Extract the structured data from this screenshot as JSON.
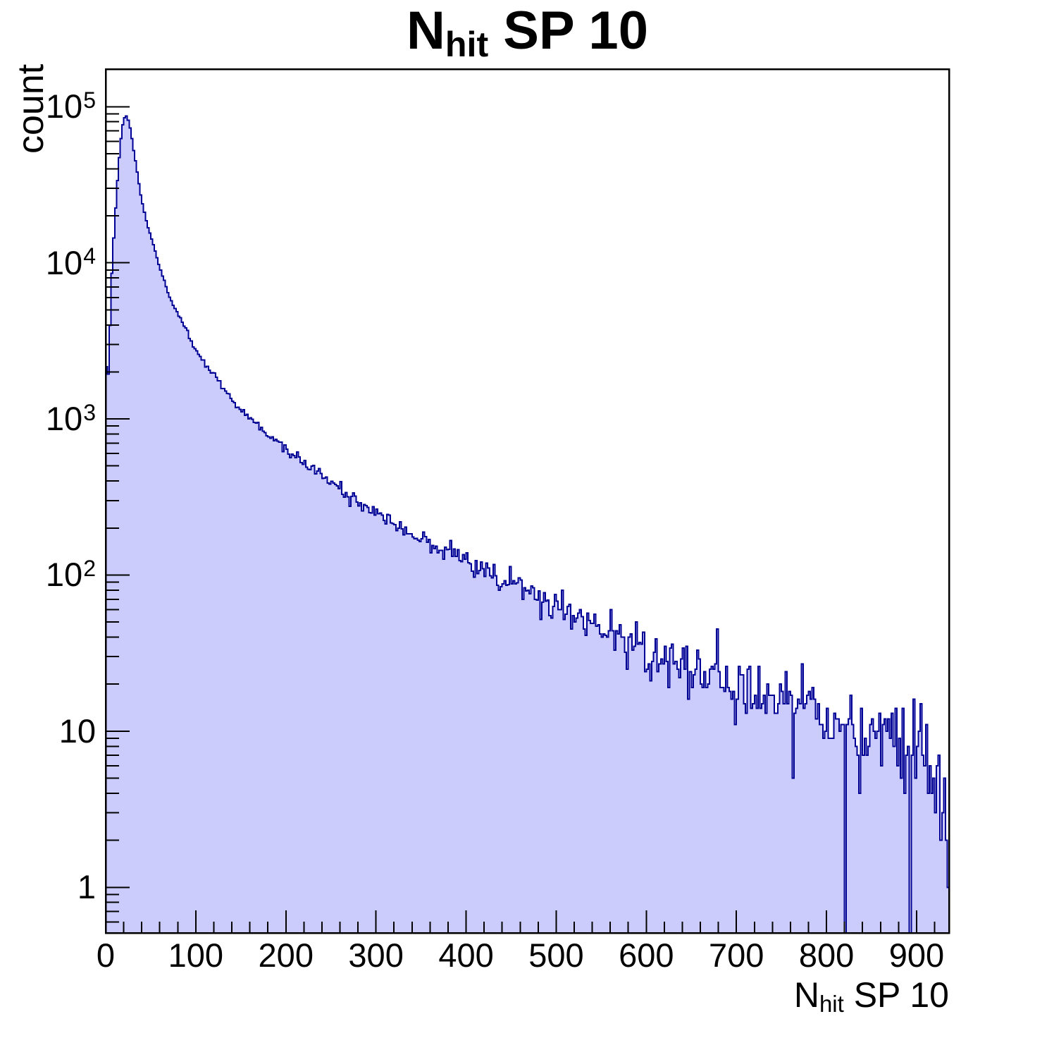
{
  "title": {
    "main": "N",
    "sub": "hit",
    "rest": " SP 10"
  },
  "y_axis": {
    "label": "count",
    "scale": "log",
    "range": [
      0.51,
      174000
    ],
    "ticks": [
      {
        "v": 100000,
        "base": "10",
        "exp": "5"
      },
      {
        "v": 10000,
        "base": "10",
        "exp": "4"
      },
      {
        "v": 1000,
        "base": "10",
        "exp": "3"
      },
      {
        "v": 100,
        "base": "10",
        "exp": "2"
      },
      {
        "v": 10,
        "base": "10",
        "exp": ""
      },
      {
        "v": 1,
        "base": "1",
        "exp": ""
      }
    ]
  },
  "x_axis": {
    "label": {
      "main": "N",
      "sub": "hit",
      "rest": " SP 10"
    },
    "range": [
      0,
      936
    ],
    "minor_step": 20,
    "ticks": [
      {
        "v": 0,
        "label": "0"
      },
      {
        "v": 100,
        "label": "100"
      },
      {
        "v": 200,
        "label": "200"
      },
      {
        "v": 300,
        "label": "300"
      },
      {
        "v": 400,
        "label": "400"
      },
      {
        "v": 500,
        "label": "500"
      },
      {
        "v": 600,
        "label": "600"
      },
      {
        "v": 700,
        "label": "700"
      },
      {
        "v": 800,
        "label": "800"
      },
      {
        "v": 900,
        "label": "900"
      }
    ]
  },
  "colors": {
    "fill": "#ccccfc",
    "line": "#000095",
    "frame": "#000000",
    "text": "#000000",
    "background": "#ffffff"
  },
  "chart_data": {
    "type": "histogram",
    "style": "filled step histogram, log-scale y axis (ROOT style)",
    "title": "N_hit SP 10",
    "xlabel": "N_hit SP 10",
    "ylabel": "count",
    "xlim": [
      0,
      936
    ],
    "ylim": [
      0.51,
      174000
    ],
    "yscale": "log",
    "bin_width": 2,
    "n_bins": 468,
    "peak": {
      "x": 22,
      "count": 88000
    },
    "anchors": [
      [
        0,
        2900
      ],
      [
        2,
        1550
      ],
      [
        4,
        2450
      ],
      [
        6,
        6500
      ],
      [
        8,
        11500
      ],
      [
        10,
        18000
      ],
      [
        12,
        28000
      ],
      [
        14,
        40000
      ],
      [
        16,
        56000
      ],
      [
        18,
        71000
      ],
      [
        20,
        82000
      ],
      [
        22,
        88000
      ],
      [
        24,
        86000
      ],
      [
        26,
        78000
      ],
      [
        28,
        68000
      ],
      [
        30,
        57000
      ],
      [
        33,
        45000
      ],
      [
        36,
        35000
      ],
      [
        40,
        25500
      ],
      [
        44,
        19500
      ],
      [
        48,
        16000
      ],
      [
        52,
        13800
      ],
      [
        56,
        11300
      ],
      [
        60,
        9300
      ],
      [
        65,
        7600
      ],
      [
        70,
        6300
      ],
      [
        75,
        5400
      ],
      [
        80,
        4700
      ],
      [
        85,
        4150
      ],
      [
        90,
        3650
      ],
      [
        95,
        3150
      ],
      [
        100,
        2750
      ],
      [
        110,
        2250
      ],
      [
        120,
        1900
      ],
      [
        130,
        1600
      ],
      [
        140,
        1320
      ],
      [
        150,
        1150
      ],
      [
        160,
        1000
      ],
      [
        170,
        900
      ],
      [
        180,
        800
      ],
      [
        190,
        710
      ],
      [
        200,
        640
      ],
      [
        215,
        560
      ],
      [
        230,
        480
      ],
      [
        245,
        420
      ],
      [
        260,
        360
      ],
      [
        275,
        315
      ],
      [
        290,
        278
      ],
      [
        300,
        255
      ],
      [
        320,
        215
      ],
      [
        340,
        182
      ],
      [
        360,
        160
      ],
      [
        380,
        140
      ],
      [
        400,
        122
      ],
      [
        420,
        108
      ],
      [
        440,
        96
      ],
      [
        460,
        84
      ],
      [
        480,
        73
      ],
      [
        500,
        64
      ],
      [
        520,
        57
      ],
      [
        540,
        50
      ],
      [
        560,
        44
      ],
      [
        580,
        39
      ],
      [
        600,
        34
      ],
      [
        620,
        30
      ],
      [
        640,
        27
      ],
      [
        660,
        25
      ],
      [
        680,
        22
      ],
      [
        700,
        20
      ],
      [
        720,
        18
      ],
      [
        740,
        17
      ],
      [
        760,
        15
      ],
      [
        780,
        14
      ],
      [
        800,
        13
      ],
      [
        820,
        12
      ],
      [
        840,
        11
      ],
      [
        860,
        10
      ],
      [
        880,
        9
      ],
      [
        900,
        8
      ],
      [
        910,
        6
      ],
      [
        920,
        5
      ],
      [
        926,
        4
      ],
      [
        930,
        2
      ],
      [
        936,
        1
      ]
    ],
    "zero_bins": [
      820,
      892
    ],
    "noise": {
      "model": "poisson",
      "seed": 1137
    }
  }
}
